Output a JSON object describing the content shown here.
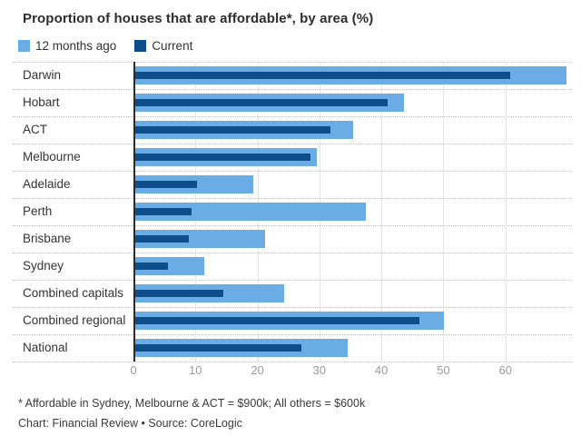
{
  "title": "Proportion of houses that are affordable*, by area (%)",
  "footnote": "* Affordable in Sydney, Melbourne & ACT = $900k; All others = $600k",
  "credit": "Chart: Financial Review • Source: CoreLogic",
  "colors": {
    "light_blue": "#6AACE4",
    "dark_blue": "#0D4D8C",
    "gridline": "#e4e4e4",
    "axis_line": "#2b2b2b",
    "tick_label": "#9b9b9b"
  },
  "chart_data": {
    "type": "bar",
    "orientation": "horizontal",
    "title": "Proportion of houses that are affordable*, by area (%)",
    "categories": [
      "Darwin",
      "Hobart",
      "ACT",
      "Melbourne",
      "Adelaide",
      "Perth",
      "Brisbane",
      "Sydney",
      "Combined capitals",
      "Combined regional",
      "National"
    ],
    "series": [
      {
        "name": "12 months ago",
        "color": "#6AACE4",
        "values": [
          69.8,
          43.6,
          35.4,
          29.6,
          19.3,
          37.5,
          21.2,
          11.4,
          24.3,
          50.1,
          34.5
        ]
      },
      {
        "name": "Current",
        "color": "#0D4D8C",
        "values": [
          60.8,
          41.0,
          31.8,
          28.5,
          10.2,
          9.4,
          8.9,
          5.6,
          14.5,
          46.1,
          27.1
        ]
      }
    ],
    "xlabel": "",
    "ylabel": "",
    "xlim": [
      0,
      70
    ],
    "xticks": [
      0,
      10,
      20,
      30,
      40,
      50,
      60
    ],
    "grid": "vertical",
    "legend_position": "top-left"
  }
}
